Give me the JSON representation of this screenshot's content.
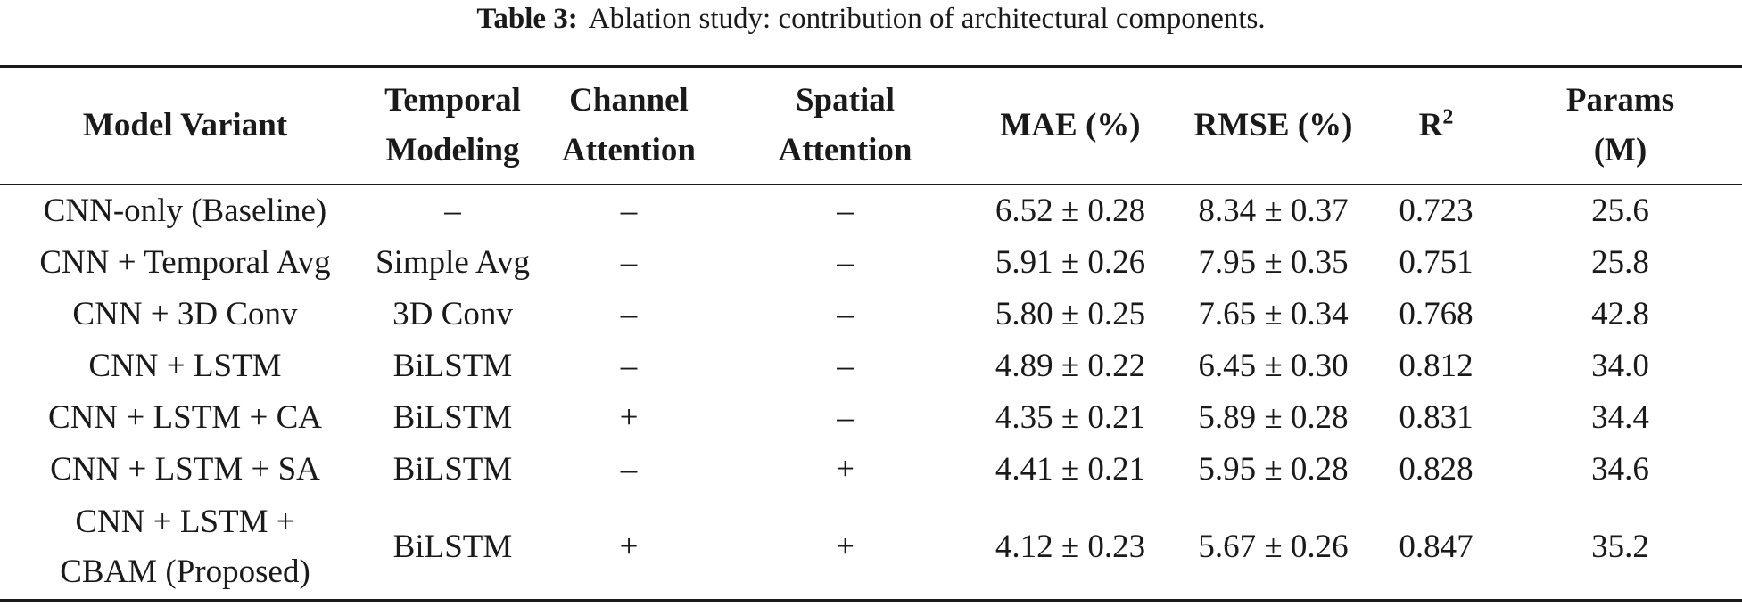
{
  "caption": {
    "label": "Table 3:",
    "text": "Ablation study: contribution of architectural components."
  },
  "headers": {
    "model_variant": "Model Variant",
    "temporal_1": "Temporal",
    "temporal_2": "Modeling",
    "channel_1": "Channel",
    "channel_2": "Attention",
    "spatial_1": "Spatial",
    "spatial_2": "Attention",
    "mae": "MAE (%)",
    "rmse": "RMSE (%)",
    "r2_base": "R",
    "r2_sup": "2",
    "params_1": "Params",
    "params_2": "(M)"
  },
  "rows": [
    {
      "model": "CNN-only (Baseline)",
      "temporal": "–",
      "channel": "–",
      "spatial": "–",
      "mae": "6.52 ± 0.28",
      "rmse": "8.34 ± 0.37",
      "r2": "0.723",
      "params": "25.6"
    },
    {
      "model": "CNN + Temporal Avg",
      "temporal": "Simple Avg",
      "channel": "–",
      "spatial": "–",
      "mae": "5.91 ± 0.26",
      "rmse": "7.95 ± 0.35",
      "r2": "0.751",
      "params": "25.8"
    },
    {
      "model": "CNN + 3D Conv",
      "temporal": "3D Conv",
      "channel": "–",
      "spatial": "–",
      "mae": "5.80 ± 0.25",
      "rmse": "7.65 ± 0.34",
      "r2": "0.768",
      "params": "42.8"
    },
    {
      "model": "CNN + LSTM",
      "temporal": "BiLSTM",
      "channel": "–",
      "spatial": "–",
      "mae": "4.89 ± 0.22",
      "rmse": "6.45 ± 0.30",
      "r2": "0.812",
      "params": "34.0"
    },
    {
      "model": "CNN + LSTM + CA",
      "temporal": "BiLSTM",
      "channel": "+",
      "spatial": "–",
      "mae": "4.35 ± 0.21",
      "rmse": "5.89 ± 0.28",
      "r2": "0.831",
      "params": "34.4"
    },
    {
      "model": "CNN + LSTM + SA",
      "temporal": "BiLSTM",
      "channel": "–",
      "spatial": "+",
      "mae": "4.41 ± 0.21",
      "rmse": "5.95 ± 0.28",
      "r2": "0.828",
      "params": "34.6"
    },
    {
      "model_line1": "CNN + LSTM +",
      "model_line2": "CBAM (Proposed)",
      "temporal": "BiLSTM",
      "channel": "+",
      "spatial": "+",
      "mae": "4.12 ± 0.23",
      "rmse": "5.67 ± 0.26",
      "r2": "0.847",
      "params": "35.2"
    }
  ]
}
